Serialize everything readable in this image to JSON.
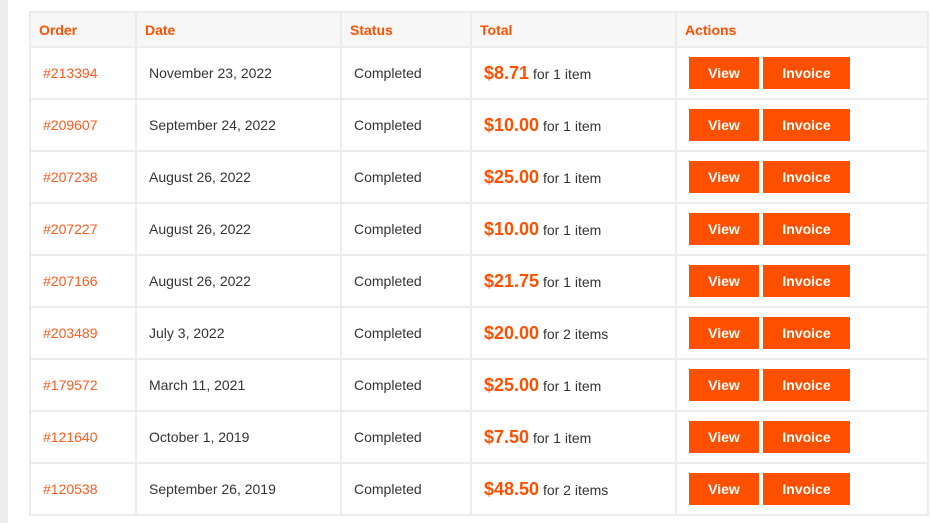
{
  "colors": {
    "accent": "#ff5000"
  },
  "headers": {
    "order": "Order",
    "date": "Date",
    "status": "Status",
    "total": "Total",
    "actions": "Actions"
  },
  "buttons": {
    "view": "View",
    "invoice": "Invoice"
  },
  "orders": [
    {
      "id": "#213394",
      "date": "November 23, 2022",
      "status": "Completed",
      "amount": "$8.71",
      "items": "for 1 item"
    },
    {
      "id": "#209607",
      "date": "September 24, 2022",
      "status": "Completed",
      "amount": "$10.00",
      "items": "for 1 item"
    },
    {
      "id": "#207238",
      "date": "August 26, 2022",
      "status": "Completed",
      "amount": "$25.00",
      "items": "for 1 item"
    },
    {
      "id": "#207227",
      "date": "August 26, 2022",
      "status": "Completed",
      "amount": "$10.00",
      "items": "for 1 item"
    },
    {
      "id": "#207166",
      "date": "August 26, 2022",
      "status": "Completed",
      "amount": "$21.75",
      "items": "for 1 item"
    },
    {
      "id": "#203489",
      "date": "July 3, 2022",
      "status": "Completed",
      "amount": "$20.00",
      "items": "for 2 items"
    },
    {
      "id": "#179572",
      "date": "March 11, 2021",
      "status": "Completed",
      "amount": "$25.00",
      "items": "for 1 item"
    },
    {
      "id": "#121640",
      "date": "October 1, 2019",
      "status": "Completed",
      "amount": "$7.50",
      "items": "for 1 item"
    },
    {
      "id": "#120538",
      "date": "September 26, 2019",
      "status": "Completed",
      "amount": "$48.50",
      "items": "for 2 items"
    }
  ]
}
